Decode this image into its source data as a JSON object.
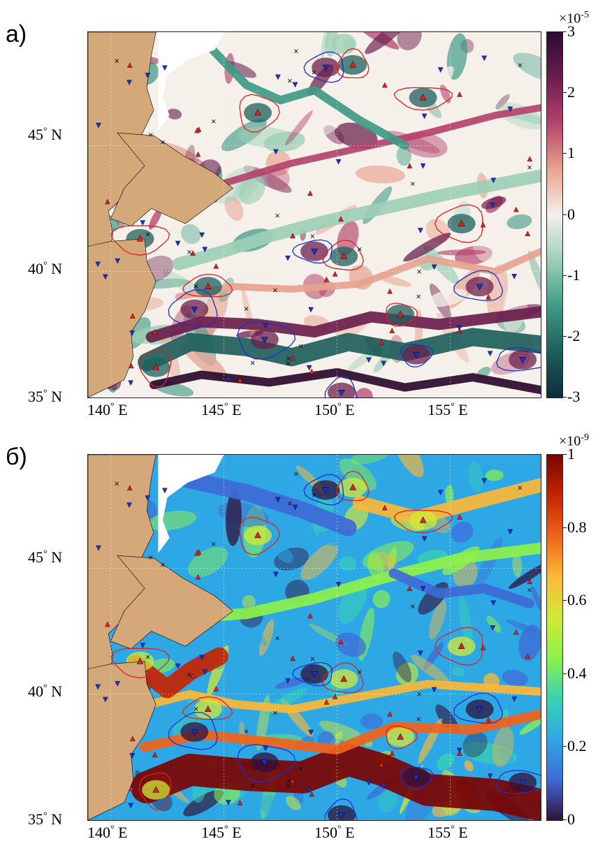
{
  "panels": [
    {
      "id": "a",
      "label": "а)",
      "colorbar": {
        "exponent_base": "×10",
        "exponent_power": "-5",
        "ticks": [
          "3",
          "2",
          "1",
          "0",
          "-1",
          "-2",
          "-3"
        ],
        "colors": [
          "#2b0a2e",
          "#6b1f4d",
          "#b4436d",
          "#e8a38f",
          "#f5f0ea",
          "#9ccfb6",
          "#3f9a86",
          "#1e5f5c",
          "#0f2c3c"
        ]
      }
    },
    {
      "id": "b",
      "label": "б)",
      "colorbar": {
        "exponent_base": "×10",
        "exponent_power": "-9",
        "ticks": [
          "1",
          "0.8",
          "0.6",
          "0.4",
          "0.2",
          "0"
        ],
        "colors": [
          "#7a0403",
          "#c42503",
          "#f1631a",
          "#fbb938",
          "#d2e935",
          "#8df14a",
          "#38d3b2",
          "#2ea8e5",
          "#3e6ad6",
          "#30123b"
        ]
      }
    }
  ],
  "axes": {
    "lat_labels": [
      {
        "deg": "45",
        "hemi": "N"
      },
      {
        "deg": "40",
        "hemi": "N"
      },
      {
        "deg": "35",
        "hemi": "N"
      }
    ],
    "lon_labels": [
      {
        "deg": "140",
        "hemi": "E"
      },
      {
        "deg": "145",
        "hemi": "E"
      },
      {
        "deg": "150",
        "hemi": "E"
      },
      {
        "deg": "155",
        "hemi": "E"
      }
    ]
  },
  "map_extent": {
    "lon_min": 139.0,
    "lon_max": 159.0,
    "lat_min": 35.0,
    "lat_max": 49.5
  },
  "colors": {
    "land": "#d5a87a",
    "nodata": "#ffffff",
    "anticyclone": "#e02020",
    "cyclone": "#1a2fd0",
    "marker_x": "#111111"
  },
  "eddies": [
    {
      "type": "anticyclone",
      "lon": 152.8,
      "lat": 38.3
    },
    {
      "type": "anticyclone",
      "lon": 150.3,
      "lat": 40.6
    },
    {
      "type": "anticyclone",
      "lon": 155.5,
      "lat": 41.9
    },
    {
      "type": "anticyclone",
      "lon": 153.8,
      "lat": 46.9
    },
    {
      "type": "anticyclone",
      "lon": 150.7,
      "lat": 48.2
    },
    {
      "type": "anticyclone",
      "lon": 146.5,
      "lat": 46.3
    },
    {
      "type": "anticyclone",
      "lon": 144.3,
      "lat": 39.4
    },
    {
      "type": "anticyclone",
      "lon": 141.3,
      "lat": 41.3
    },
    {
      "type": "anticyclone",
      "lon": 142.0,
      "lat": 36.2
    },
    {
      "type": "cyclone",
      "lon": 149.0,
      "lat": 40.8
    },
    {
      "type": "cyclone",
      "lon": 156.3,
      "lat": 39.4
    },
    {
      "type": "cyclone",
      "lon": 146.8,
      "lat": 37.3
    },
    {
      "type": "cyclone",
      "lon": 153.5,
      "lat": 36.7
    },
    {
      "type": "cyclone",
      "lon": 149.5,
      "lat": 48.1
    },
    {
      "type": "cyclone",
      "lon": 143.7,
      "lat": 38.5
    },
    {
      "type": "cyclone",
      "lon": 158.2,
      "lat": 36.5
    },
    {
      "type": "cyclone",
      "lon": 150.2,
      "lat": 35.2
    }
  ]
}
